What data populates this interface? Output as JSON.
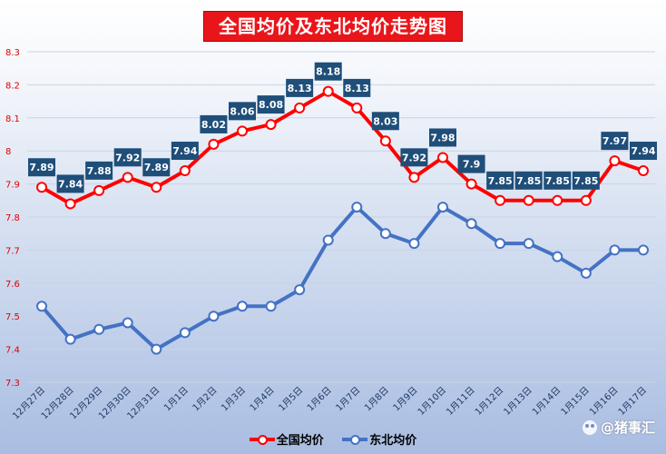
{
  "chart_data": {
    "type": "line",
    "title": "全国均价及东北均价走势图",
    "categories": [
      "12月27日",
      "12月28日",
      "12月29日",
      "12月30日",
      "12月31日",
      "1月1日",
      "1月2日",
      "1月3日",
      "1月4日",
      "1月5日",
      "1月6日",
      "1月7日",
      "1月8日",
      "1月9日",
      "1月10日",
      "1月11日",
      "1月12日",
      "1月13日",
      "1月14日",
      "1月15日",
      "1月16日",
      "1月17日"
    ],
    "ylim": [
      7.3,
      8.3
    ],
    "yticks": [
      "7.3",
      "7.4",
      "7.5",
      "7.6",
      "7.7",
      "7.8",
      "7.9",
      "8",
      "8.1",
      "8.2",
      "8.3"
    ],
    "series": [
      {
        "name": "全国均价",
        "color": "#ff0000",
        "values": [
          7.89,
          7.84,
          7.88,
          7.92,
          7.89,
          7.94,
          8.02,
          8.06,
          8.08,
          8.13,
          8.18,
          8.13,
          8.03,
          7.92,
          7.98,
          7.9,
          7.85,
          7.85,
          7.85,
          7.85,
          7.97,
          7.94
        ],
        "labels": [
          "7.89",
          "7.84",
          "7.88",
          "7.92",
          "7.89",
          "7.94",
          "8.02",
          "8.06",
          "8.08",
          "8.13",
          "8.18",
          "8.13",
          "8.03",
          "7.92",
          "7.98",
          "7.9",
          "7.85",
          "7.85",
          "7.85",
          "7.85",
          "7.97",
          "7.94"
        ]
      },
      {
        "name": "东北均价",
        "color": "#4472c4",
        "values": [
          7.53,
          7.43,
          7.46,
          7.48,
          7.4,
          7.45,
          7.5,
          7.53,
          7.53,
          7.58,
          7.73,
          7.83,
          7.75,
          7.72,
          7.83,
          7.78,
          7.72,
          7.72,
          7.68,
          7.63,
          7.7,
          7.7
        ]
      }
    ],
    "legend_position": "bottom",
    "label_box_color": "#1f4e79",
    "ytick_color": "#e00000"
  },
  "watermark": {
    "text": "@猪事汇",
    "icon": "paw-icon"
  }
}
